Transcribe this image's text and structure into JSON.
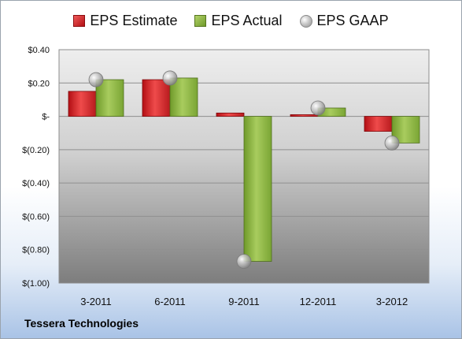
{
  "company": "Tessera Technologies",
  "chart_data": {
    "type": "bar",
    "categories": [
      "3-2011",
      "6-2011",
      "9-2011",
      "12-2011",
      "3-2012"
    ],
    "series": [
      {
        "name": "EPS Estimate",
        "kind": "bar",
        "color": "#d42a2a",
        "values": [
          0.15,
          0.22,
          0.02,
          0.01,
          -0.09
        ]
      },
      {
        "name": "EPS Actual",
        "kind": "bar",
        "color": "#8fb544",
        "values": [
          0.22,
          0.23,
          -0.87,
          0.05,
          -0.16
        ]
      },
      {
        "name": "EPS GAAP",
        "kind": "marker",
        "color": "#b0b0b0",
        "values": [
          0.22,
          0.23,
          -0.87,
          0.05,
          -0.16
        ]
      }
    ],
    "y_ticks": [
      {
        "value": 0.4,
        "label": "$0.40"
      },
      {
        "value": 0.2,
        "label": "$0.20"
      },
      {
        "value": 0,
        "label": "$-"
      },
      {
        "value": -0.2,
        "label": "$(0.20)"
      },
      {
        "value": -0.4,
        "label": "$(0.40)"
      },
      {
        "value": -0.6,
        "label": "$(0.60)"
      },
      {
        "value": -0.8,
        "label": "$(0.80)"
      },
      {
        "value": -1.0,
        "label": "$(1.00)"
      }
    ],
    "ylim": [
      -1.0,
      0.4
    ],
    "grid": true,
    "legend_position": "top"
  }
}
